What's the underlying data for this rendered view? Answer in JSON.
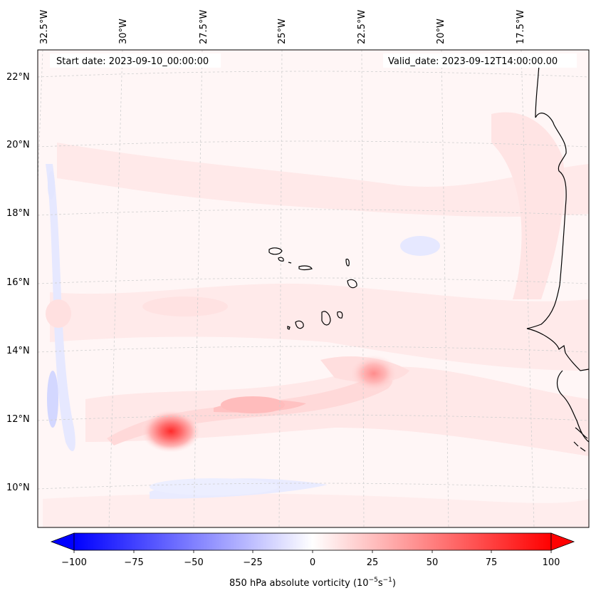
{
  "start_date": "Start date: 2023-09-10_00:00:00",
  "valid_date": "Valid_date: 2023-09-12T14:00:00.00",
  "lon_labels": [
    "32.5°W",
    "30°W",
    "27.5°W",
    "25°W",
    "22.5°W",
    "20°W",
    "17.5°W"
  ],
  "lat_labels": [
    "22°N",
    "20°N",
    "18°N",
    "16°N",
    "14°N",
    "12°N",
    "10°N"
  ],
  "colorbar": {
    "ticks": [
      "−100",
      "−75",
      "−50",
      "−25",
      "0",
      "25",
      "50",
      "75",
      "100"
    ],
    "label_main": "850 hPa absolute vorticity (10",
    "label_exp1": "−5",
    "label_mid": "s",
    "label_exp2": "−1",
    "label_end": ")"
  },
  "colors": {
    "negative": "#0000ff",
    "zero": "#ffffff",
    "positive": "#ff0000",
    "coast": "#000000"
  }
}
